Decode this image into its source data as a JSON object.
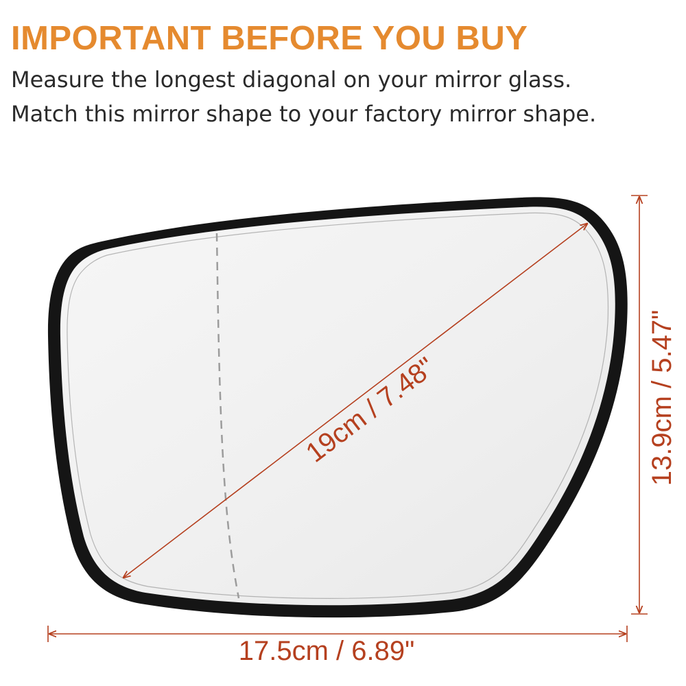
{
  "header": {
    "title": "IMPORTANT BEFORE YOU BUY",
    "line1": "Measure the longest diagonal on your mirror glass.",
    "line2": "Match this mirror shape to your factory mirror shape."
  },
  "dimensions": {
    "diagonal": "19cm / 7.48\"",
    "width": "17.5cm / 6.89\"",
    "height": "13.9cm / 5.47\""
  },
  "colors": {
    "title": "#e58a2f",
    "dimension": "#b5401f",
    "frame": "#111111",
    "glass": "#f1f1f1"
  }
}
